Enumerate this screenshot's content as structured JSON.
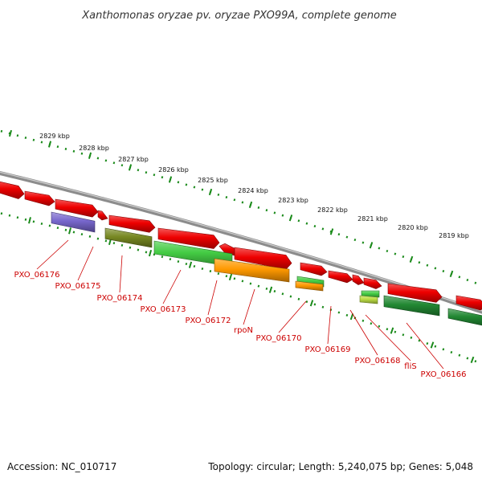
{
  "title": "Xanthomonas oryzae pv. oryzae PXO99A, complete genome",
  "footer": {
    "accession": "Accession: NC_010717",
    "topology": "Topology: circular; Length: 5,240,075 bp; Genes: 5,048"
  },
  "colors": {
    "backbone": "#8c8c8c",
    "ticks": "#1a8a1a",
    "label": "#cc0000",
    "red": "#ee0000",
    "purple": "#7766cc",
    "olive": "#778822",
    "light_green": "#44cc44",
    "orange": "#ff9900",
    "yellow_green": "#bbdd44",
    "dark_green": "#228833"
  },
  "kbp_labels": [
    "2829 kbp",
    "2828 kbp",
    "2827 kbp",
    "2826 kbp",
    "2825 kbp",
    "2824 kbp",
    "2823 kbp",
    "2822 kbp",
    "2821 kbp",
    "2820 kbp",
    "2819 kbp"
  ],
  "gene_labels": [
    "PXO_06176",
    "PXO_06175",
    "PXO_06174",
    "PXO_06173",
    "PXO_06172",
    "rpoN",
    "PXO_06170",
    "PXO_06169",
    "PXO_06168",
    "fliS",
    "PXO_06166"
  ]
}
